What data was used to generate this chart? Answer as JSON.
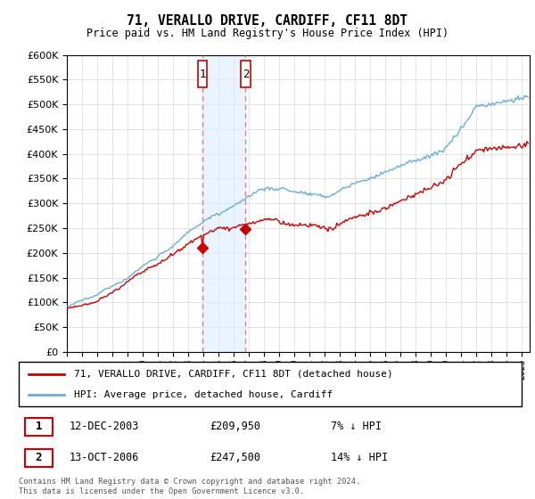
{
  "title": "71, VERALLO DRIVE, CARDIFF, CF11 8DT",
  "subtitle": "Price paid vs. HM Land Registry's House Price Index (HPI)",
  "hpi_color": "#6baed6",
  "price_color": "#cc0000",
  "sale1_date_label": "12-DEC-2003",
  "sale1_price": 209950,
  "sale1_hpi_diff": "7% ↓ HPI",
  "sale2_date_label": "13-OCT-2006",
  "sale2_price": 247500,
  "sale2_hpi_diff": "14% ↓ HPI",
  "sale1_x": 2003.95,
  "sale2_x": 2006.78,
  "legend_label1": "71, VERALLO DRIVE, CARDIFF, CF11 8DT (detached house)",
  "legend_label2": "HPI: Average price, detached house, Cardiff",
  "footer": "Contains HM Land Registry data © Crown copyright and database right 2024.\nThis data is licensed under the Open Government Licence v3.0.",
  "ylim_max": 600000,
  "xlim_start": 1995.0,
  "xlim_end": 2025.5,
  "shade_color": "#ddeeff",
  "shade_alpha": 0.6,
  "dashed_color": "#e08080"
}
